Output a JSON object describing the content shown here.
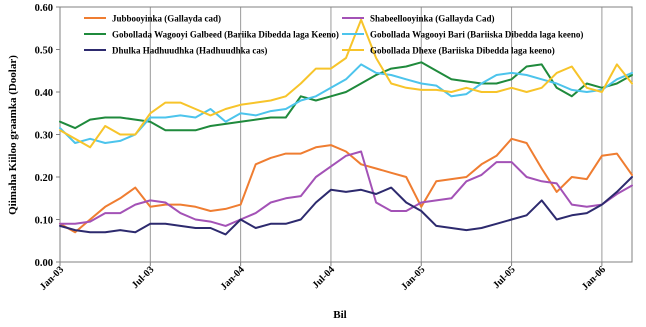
{
  "chart_data": {
    "type": "line",
    "xlabel": "Bil",
    "ylabel": "Qiimaha Kiiloo graamka (Doolar)",
    "ylim": [
      0,
      0.6
    ],
    "yticks": [
      "0.00",
      "0.10",
      "0.20",
      "0.30",
      "0.40",
      "0.50",
      "0.60"
    ],
    "ytick_values": [
      0,
      0.1,
      0.2,
      0.3,
      0.4,
      0.5,
      0.6
    ],
    "xtick_labels": [
      "Jan-03",
      "Jul-03",
      "Jan-04",
      "Jul-04",
      "Jan-05",
      "Jul-05",
      "Jan-06"
    ],
    "xtick_index": [
      0,
      6,
      12,
      18,
      24,
      30,
      36
    ],
    "n_points": 39,
    "grid": "vertical",
    "legend_position": "top",
    "series": [
      {
        "name": "Jubbooyinka (Gallayda cad)",
        "color": "#ef7d31",
        "values": [
          0.09,
          0.07,
          0.1,
          0.13,
          0.15,
          0.175,
          0.13,
          0.135,
          0.135,
          0.13,
          0.12,
          0.125,
          0.135,
          0.23,
          0.245,
          0.255,
          0.255,
          0.27,
          0.275,
          0.26,
          0.23,
          0.22,
          0.21,
          0.2,
          0.13,
          0.19,
          0.195,
          0.2,
          0.23,
          0.25,
          0.29,
          0.28,
          0.22,
          0.165,
          0.2,
          0.195,
          0.25,
          0.255,
          0.205
        ]
      },
      {
        "name": "Shabeellooyinka (Gallayda Cad)",
        "color": "#a352b6",
        "values": [
          0.09,
          0.09,
          0.095,
          0.115,
          0.115,
          0.135,
          0.145,
          0.14,
          0.115,
          0.1,
          0.095,
          0.085,
          0.1,
          0.115,
          0.14,
          0.15,
          0.155,
          0.2,
          0.225,
          0.25,
          0.26,
          0.14,
          0.12,
          0.12,
          0.14,
          0.145,
          0.15,
          0.19,
          0.205,
          0.235,
          0.235,
          0.2,
          0.19,
          0.185,
          0.135,
          0.13,
          0.135,
          0.16,
          0.18
        ]
      },
      {
        "name": "Gobollada Wagooyi Galbeed (Bariika Dibedda laga Keeno)",
        "color": "#1f8a3c",
        "values": [
          0.33,
          0.315,
          0.335,
          0.34,
          0.34,
          0.335,
          0.33,
          0.31,
          0.31,
          0.31,
          0.32,
          0.325,
          0.33,
          0.335,
          0.34,
          0.34,
          0.39,
          0.38,
          0.39,
          0.4,
          0.42,
          0.44,
          0.455,
          0.46,
          0.47,
          0.45,
          0.43,
          0.425,
          0.42,
          0.42,
          0.43,
          0.46,
          0.465,
          0.41,
          0.39,
          0.42,
          0.41,
          0.42,
          0.44
        ]
      },
      {
        "name": "Gobollada Wagooyi Bari (Bariiska Dibedda laga keeno)",
        "color": "#4cc4ec",
        "values": [
          0.315,
          0.28,
          0.29,
          0.28,
          0.285,
          0.3,
          0.34,
          0.34,
          0.345,
          0.34,
          0.36,
          0.33,
          0.35,
          0.345,
          0.355,
          0.36,
          0.38,
          0.39,
          0.41,
          0.43,
          0.465,
          0.445,
          0.44,
          0.43,
          0.42,
          0.415,
          0.39,
          0.395,
          0.42,
          0.44,
          0.445,
          0.44,
          0.43,
          0.42,
          0.405,
          0.4,
          0.405,
          0.43,
          0.445
        ]
      },
      {
        "name": "Dhulka Hadhuudhka (Hadhuudhka cas)",
        "color": "#2d2a6e",
        "values": [
          0.085,
          0.075,
          0.07,
          0.07,
          0.075,
          0.07,
          0.09,
          0.09,
          0.085,
          0.08,
          0.08,
          0.065,
          0.1,
          0.08,
          0.09,
          0.09,
          0.1,
          0.14,
          0.17,
          0.165,
          0.17,
          0.16,
          0.175,
          0.14,
          0.12,
          0.085,
          0.08,
          0.075,
          0.08,
          0.09,
          0.1,
          0.11,
          0.145,
          0.1,
          0.11,
          0.115,
          0.135,
          0.165,
          0.2
        ]
      },
      {
        "name": "Gobollada Dhexe (Bariiska Dibedda laga keeno)",
        "color": "#f7c42a",
        "values": [
          0.31,
          0.29,
          0.27,
          0.32,
          0.3,
          0.3,
          0.35,
          0.375,
          0.375,
          0.36,
          0.345,
          0.36,
          0.37,
          0.375,
          0.38,
          0.39,
          0.42,
          0.455,
          0.455,
          0.48,
          0.57,
          0.48,
          0.42,
          0.41,
          0.405,
          0.405,
          0.4,
          0.41,
          0.4,
          0.4,
          0.41,
          0.4,
          0.41,
          0.445,
          0.46,
          0.41,
          0.4,
          0.465,
          0.42
        ]
      }
    ]
  }
}
